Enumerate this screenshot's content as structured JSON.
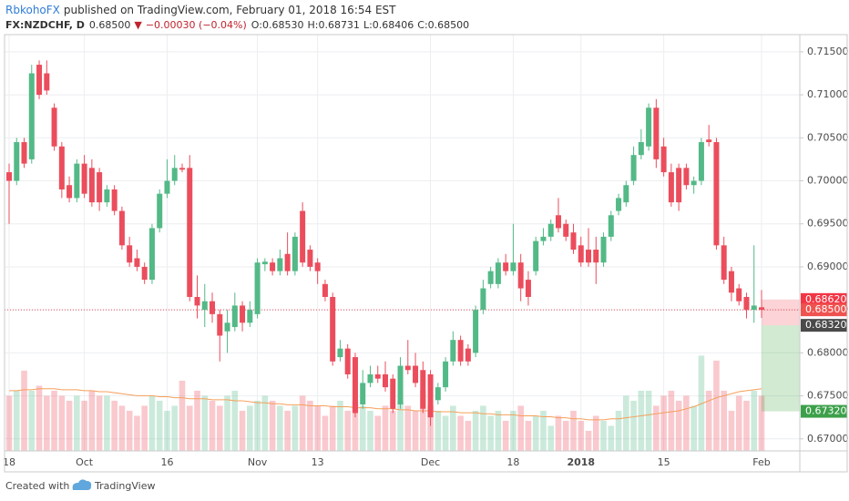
{
  "header": {
    "author": "RbkohoFX",
    "published": "published on TradingView.com, February 01, 2018 16:54 EST",
    "symbol": "FX:NZDCHF, D",
    "price": "0.68500",
    "arrow": "▼",
    "change": "−0.00030 (−0.04%)",
    "ohlc": [
      "O:0.68530",
      "H:0.68731",
      "L:0.68406",
      "C:0.68500"
    ]
  },
  "footer": {
    "created": "Created with",
    "brand": "TradingView"
  },
  "chart_data": {
    "type": "candlestick",
    "categories": [
      "18",
      null,
      null,
      null,
      null,
      null,
      null,
      null,
      null,
      null,
      "Oct",
      null,
      null,
      null,
      null,
      null,
      null,
      null,
      null,
      null,
      null,
      "16",
      null,
      null,
      null,
      null,
      null,
      null,
      null,
      null,
      null,
      null,
      null,
      "Nov",
      null,
      null,
      null,
      null,
      null,
      null,
      null,
      "13",
      null,
      null,
      null,
      null,
      null,
      null,
      null,
      null,
      null,
      null,
      null,
      null,
      null,
      null,
      "Dec",
      null,
      null,
      null,
      null,
      null,
      null,
      null,
      null,
      null,
      null,
      "18",
      null,
      null,
      null,
      null,
      null,
      null,
      null,
      null,
      "2018",
      null,
      null,
      null,
      null,
      null,
      null,
      null,
      null,
      null,
      null,
      "15",
      null,
      null,
      null,
      null,
      null,
      null,
      null,
      null,
      null,
      null,
      null,
      null,
      "Feb"
    ],
    "open": [
      0.701,
      0.7,
      0.7045,
      0.7025,
      0.7135,
      0.7125,
      0.7085,
      0.704,
      0.6995,
      0.698,
      0.702,
      0.7015,
      0.701,
      0.6975,
      0.699,
      0.6965,
      0.6925,
      0.691,
      0.69,
      0.6885,
      0.6945,
      0.6985,
      0.7,
      0.7015,
      0.7015,
      0.6865,
      0.685,
      0.686,
      0.6845,
      0.6825,
      0.683,
      0.6855,
      0.6835,
      0.6845,
      0.6903,
      0.6905,
      0.6895,
      0.6915,
      0.6895,
      0.6965,
      0.692,
      0.6905,
      0.688,
      0.6865,
      0.6795,
      0.6805,
      0.6795,
      0.674,
      0.6765,
      0.6775,
      0.6775,
      0.677,
      0.674,
      0.6785,
      0.6785,
      0.678,
      0.6775,
      0.6745,
      0.676,
      0.679,
      0.6815,
      0.6805,
      0.68,
      0.685,
      0.688,
      0.688,
      0.6905,
      0.6895,
      0.6905,
      0.6885,
      0.6895,
      0.693,
      0.6935,
      0.696,
      0.695,
      0.694,
      0.6925,
      0.692,
      0.692,
      0.6905,
      0.6935,
      0.6965,
      0.6975,
      0.7,
      0.703,
      0.704,
      0.7085,
      0.704,
      0.701,
      0.7015,
      0.7015,
      0.6995,
      0.7,
      0.7048,
      0.7045,
      0.6925,
      0.6895,
      0.6875,
      0.6865,
      0.685,
      0.6853
    ],
    "high": [
      0.702,
      0.705,
      0.705,
      0.7135,
      0.714,
      0.714,
      0.709,
      0.7045,
      0.7005,
      0.7025,
      0.703,
      0.7025,
      0.7015,
      0.6995,
      0.6995,
      0.697,
      0.6935,
      0.692,
      0.6905,
      0.695,
      0.699,
      0.7025,
      0.703,
      0.702,
      0.703,
      0.689,
      0.688,
      0.687,
      0.685,
      0.685,
      0.687,
      0.686,
      0.686,
      0.691,
      0.691,
      0.691,
      0.692,
      0.694,
      0.694,
      0.6975,
      0.6925,
      0.691,
      0.6885,
      0.687,
      0.6815,
      0.681,
      0.68,
      0.678,
      0.6785,
      0.6785,
      0.679,
      0.6775,
      0.6795,
      0.6815,
      0.68,
      0.679,
      0.678,
      0.6765,
      0.6795,
      0.6825,
      0.682,
      0.681,
      0.6855,
      0.6885,
      0.69,
      0.691,
      0.6915,
      0.695,
      0.6915,
      0.6895,
      0.6935,
      0.6945,
      0.6955,
      0.698,
      0.6955,
      0.695,
      0.6935,
      0.6945,
      0.6935,
      0.694,
      0.6965,
      0.6985,
      0.7,
      0.704,
      0.706,
      0.709,
      0.7095,
      0.705,
      0.702,
      0.702,
      0.702,
      0.7005,
      0.705,
      0.7065,
      0.705,
      0.6935,
      0.69,
      0.688,
      0.687,
      0.6925,
      0.68731
    ],
    "low": [
      0.695,
      0.6995,
      0.7015,
      0.702,
      0.7095,
      0.71,
      0.7035,
      0.698,
      0.6975,
      0.6975,
      0.698,
      0.697,
      0.6965,
      0.697,
      0.696,
      0.692,
      0.69,
      0.6895,
      0.688,
      0.688,
      0.694,
      0.698,
      0.6995,
      0.701,
      0.686,
      0.684,
      0.683,
      0.6835,
      0.679,
      0.68,
      0.6825,
      0.6825,
      0.683,
      0.684,
      0.6895,
      0.689,
      0.689,
      0.689,
      0.689,
      0.69,
      0.6895,
      0.688,
      0.686,
      0.6785,
      0.679,
      0.677,
      0.6725,
      0.6735,
      0.676,
      0.6765,
      0.6755,
      0.673,
      0.6735,
      0.6775,
      0.676,
      0.673,
      0.6715,
      0.674,
      0.6755,
      0.6785,
      0.6785,
      0.6785,
      0.6795,
      0.6845,
      0.6875,
      0.6875,
      0.689,
      0.689,
      0.686,
      0.6855,
      0.689,
      0.6925,
      0.693,
      0.694,
      0.693,
      0.6915,
      0.69,
      0.69,
      0.688,
      0.69,
      0.693,
      0.696,
      0.697,
      0.6995,
      0.7025,
      0.7035,
      0.7015,
      0.7005,
      0.697,
      0.6965,
      0.699,
      0.6985,
      0.6995,
      0.704,
      0.692,
      0.688,
      0.686,
      0.6855,
      0.684,
      0.6835,
      0.68406
    ],
    "close": [
      0.7,
      0.7045,
      0.702,
      0.7125,
      0.71,
      0.7105,
      0.704,
      0.699,
      0.698,
      0.702,
      0.6985,
      0.6975,
      0.6975,
      0.699,
      0.6965,
      0.6925,
      0.6905,
      0.69,
      0.6885,
      0.6945,
      0.6985,
      0.7,
      0.7015,
      0.7013,
      0.6865,
      0.6855,
      0.686,
      0.6845,
      0.682,
      0.6835,
      0.6855,
      0.6835,
      0.685,
      0.6905,
      0.6906,
      0.6895,
      0.691,
      0.6895,
      0.6935,
      0.6905,
      0.69,
      0.6895,
      0.6865,
      0.679,
      0.6805,
      0.6775,
      0.673,
      0.6765,
      0.6775,
      0.677,
      0.676,
      0.6735,
      0.6785,
      0.678,
      0.6765,
      0.6735,
      0.6725,
      0.676,
      0.679,
      0.6815,
      0.679,
      0.679,
      0.685,
      0.6875,
      0.6895,
      0.6905,
      0.6895,
      0.6905,
      0.6875,
      0.6865,
      0.693,
      0.6935,
      0.695,
      0.6945,
      0.6935,
      0.692,
      0.6905,
      0.6905,
      0.6905,
      0.6935,
      0.696,
      0.698,
      0.6995,
      0.703,
      0.7045,
      0.7085,
      0.7025,
      0.701,
      0.6975,
      0.6975,
      0.6995,
      0.7,
      0.7045,
      0.7045,
      0.6925,
      0.6885,
      0.687,
      0.686,
      0.685,
      0.6855,
      0.685
    ],
    "volume": [
      55,
      60,
      80,
      60,
      65,
      55,
      60,
      55,
      50,
      55,
      50,
      60,
      55,
      55,
      50,
      45,
      40,
      35,
      45,
      55,
      50,
      40,
      45,
      70,
      45,
      60,
      55,
      50,
      45,
      55,
      60,
      40,
      45,
      50,
      55,
      50,
      45,
      40,
      45,
      55,
      50,
      45,
      35,
      45,
      50,
      40,
      50,
      45,
      40,
      35,
      45,
      40,
      50,
      45,
      40,
      60,
      45,
      40,
      35,
      45,
      35,
      30,
      40,
      45,
      35,
      40,
      30,
      40,
      45,
      30,
      35,
      40,
      25,
      35,
      30,
      40,
      30,
      20,
      35,
      30,
      25,
      40,
      55,
      50,
      60,
      60,
      45,
      55,
      60,
      50,
      55,
      45,
      95,
      60,
      90,
      60,
      40,
      55,
      50,
      60,
      55
    ],
    "volume_ma": [
      60,
      60,
      61,
      61,
      62,
      62,
      62,
      61,
      61,
      61,
      60,
      60,
      59,
      59,
      58,
      57,
      56,
      55,
      55,
      55,
      54,
      54,
      53,
      53,
      52,
      52,
      52,
      51,
      51,
      51,
      50,
      50,
      49,
      48,
      48,
      47,
      47,
      46,
      46,
      46,
      45,
      45,
      45,
      44,
      44,
      44,
      43,
      43,
      43,
      42,
      42,
      42,
      41,
      41,
      40,
      40,
      40,
      39,
      39,
      39,
      38,
      38,
      38,
      37,
      37,
      36,
      36,
      36,
      35,
      35,
      35,
      34,
      34,
      33,
      33,
      32,
      32,
      31,
      31,
      31,
      32,
      32,
      33,
      34,
      35,
      36,
      37,
      38,
      39,
      40,
      42,
      44,
      47,
      50,
      53,
      55,
      57,
      59,
      60,
      61,
      62
    ],
    "volume_ylim": [
      0,
      415
    ],
    "up_color": "#53b987",
    "down_color": "#eb4d5c",
    "volume_ma_color": "#f5a05a",
    "ylim": [
      0.6686,
      0.717
    ],
    "yticks": [
      {
        "value": 0.67,
        "label": "0.67000"
      },
      {
        "value": 0.675,
        "label": "0.67500"
      },
      {
        "value": 0.68,
        "label": "0.68000"
      },
      {
        "value": 0.685,
        "label": "0.68500"
      },
      {
        "value": 0.69,
        "label": "0.69000"
      },
      {
        "value": 0.695,
        "label": "0.69500"
      },
      {
        "value": 0.7,
        "label": "0.70000"
      },
      {
        "value": 0.705,
        "label": "0.70500"
      },
      {
        "value": 0.71,
        "label": "0.71000"
      },
      {
        "value": 0.715,
        "label": "0.71500"
      }
    ],
    "grid": true,
    "last_price_line": {
      "value": 0.685,
      "color": "#eb4d5c"
    },
    "position": {
      "stop": {
        "value": 0.6862,
        "label": "0.68620"
      },
      "entry": {
        "value": 0.6832,
        "label": "0.68320"
      },
      "target": {
        "value": 0.6732,
        "label": "0.67320"
      },
      "last": {
        "value": 0.685,
        "label": "0.68500"
      }
    }
  }
}
